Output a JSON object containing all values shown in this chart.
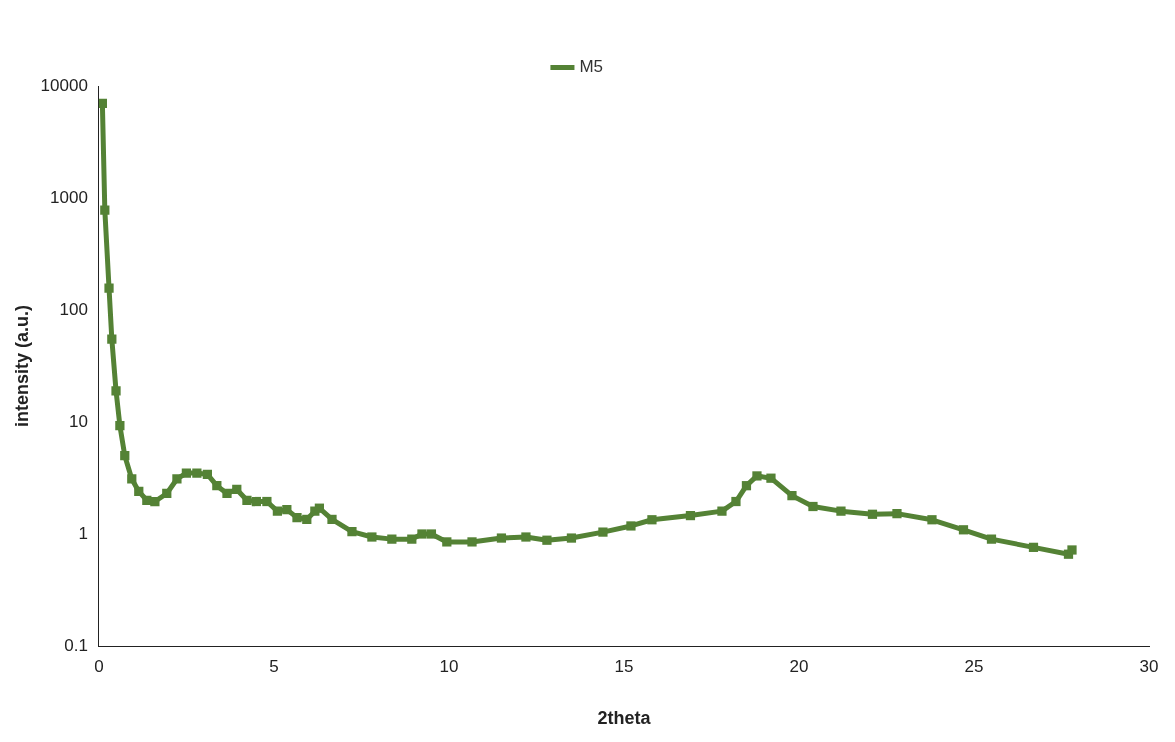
{
  "chart_data": {
    "type": "line",
    "xlabel": "2theta",
    "ylabel": "intensity (a.u.)",
    "x": [
      0.1,
      0.17,
      0.29,
      0.37,
      0.49,
      0.6,
      0.74,
      0.94,
      1.14,
      1.37,
      1.6,
      1.94,
      2.23,
      2.5,
      2.8,
      3.1,
      3.37,
      3.66,
      3.94,
      4.23,
      4.5,
      4.8,
      5.1,
      5.37,
      5.66,
      5.94,
      6.17,
      6.3,
      6.66,
      7.23,
      7.8,
      8.37,
      8.94,
      9.23,
      9.5,
      9.94,
      10.66,
      11.5,
      12.2,
      12.8,
      13.5,
      14.4,
      15.2,
      15.8,
      16.9,
      17.8,
      18.2,
      18.5,
      18.8,
      19.2,
      19.8,
      20.4,
      21.2,
      22.1,
      22.8,
      23.8,
      24.7,
      25.5,
      26.7,
      27.7,
      27.8
    ],
    "series": [
      {
        "name": "M5",
        "color": "#548235",
        "values": [
          7000,
          780,
          157,
          55,
          19,
          9.3,
          5,
          3.1,
          2.4,
          2.0,
          1.95,
          2.3,
          3.1,
          3.5,
          3.5,
          3.4,
          2.7,
          2.3,
          2.5,
          2.0,
          1.95,
          1.95,
          1.6,
          1.65,
          1.4,
          1.35,
          1.6,
          1.7,
          1.35,
          1.05,
          0.94,
          0.9,
          0.9,
          1.0,
          1.0,
          0.85,
          0.85,
          0.92,
          0.94,
          0.88,
          0.92,
          1.04,
          1.18,
          1.34,
          1.46,
          1.6,
          1.95,
          2.7,
          3.3,
          3.15,
          2.2,
          1.76,
          1.6,
          1.5,
          1.52,
          1.34,
          1.09,
          0.9,
          0.76,
          0.66,
          0.72
        ]
      }
    ],
    "xlim": [
      0,
      30
    ],
    "xticks": [
      0,
      5,
      10,
      15,
      20,
      25,
      30
    ],
    "ylim": [
      0.1,
      10000
    ],
    "yticks": [
      0.1,
      1,
      10,
      100,
      1000,
      10000
    ],
    "log": "y",
    "grid": false,
    "legend": "top",
    "marker": "square",
    "line_style": "solid"
  }
}
